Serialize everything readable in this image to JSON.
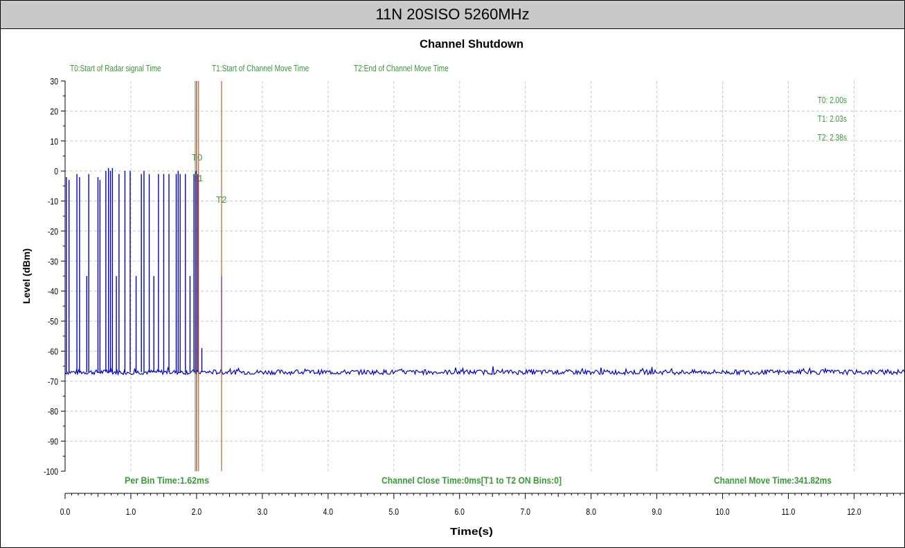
{
  "banner": "11N 20SISO 5260MHz",
  "colors": {
    "trace": "#0000cc",
    "marker_text": "#3a9a3a",
    "marker_line_red": "#cc2222",
    "marker_line_brown": "#b8602c",
    "grid": "#c8c8c8"
  },
  "chart_data": {
    "type": "line",
    "title": "Channel Shutdown",
    "xlabel": "Time(s)",
    "ylabel": "Level (dBm)",
    "xlim": [
      0,
      12.8
    ],
    "ylim": [
      -100,
      30
    ],
    "xticks": [
      "0.0",
      "1.0",
      "2.0",
      "3.0",
      "4.0",
      "5.0",
      "6.0",
      "7.0",
      "8.0",
      "9.0",
      "10.0",
      "11.0",
      "12.0"
    ],
    "yticks": [
      "30",
      "20",
      "10",
      "0",
      "-10",
      "-20",
      "-30",
      "-40",
      "-50",
      "-60",
      "-70",
      "-80",
      "-90",
      "-100"
    ],
    "grid": true,
    "noise_floor": -67,
    "pulses": [
      {
        "x": 0.02,
        "y": -2
      },
      {
        "x": 0.06,
        "y": -3
      },
      {
        "x": 0.18,
        "y": -1
      },
      {
        "x": 0.22,
        "y": -2
      },
      {
        "x": 0.33,
        "y": -35
      },
      {
        "x": 0.36,
        "y": -1
      },
      {
        "x": 0.5,
        "y": -2
      },
      {
        "x": 0.53,
        "y": -3
      },
      {
        "x": 0.62,
        "y": 0
      },
      {
        "x": 0.66,
        "y": 1
      },
      {
        "x": 0.69,
        "y": 0
      },
      {
        "x": 0.72,
        "y": 1
      },
      {
        "x": 0.78,
        "y": -35
      },
      {
        "x": 0.82,
        "y": -1
      },
      {
        "x": 0.91,
        "y": 0
      },
      {
        "x": 0.99,
        "y": 0
      },
      {
        "x": 1.08,
        "y": -35
      },
      {
        "x": 1.16,
        "y": -1
      },
      {
        "x": 1.2,
        "y": 0
      },
      {
        "x": 1.28,
        "y": -1
      },
      {
        "x": 1.35,
        "y": -35
      },
      {
        "x": 1.42,
        "y": -1
      },
      {
        "x": 1.5,
        "y": -1
      },
      {
        "x": 1.58,
        "y": -1
      },
      {
        "x": 1.69,
        "y": -1
      },
      {
        "x": 1.72,
        "y": 0
      },
      {
        "x": 1.75,
        "y": -1
      },
      {
        "x": 1.83,
        "y": -1
      },
      {
        "x": 1.9,
        "y": -35
      },
      {
        "x": 1.96,
        "y": -1
      },
      {
        "x": 1.99,
        "y": 0
      },
      {
        "x": 2.02,
        "y": -1
      },
      {
        "x": 2.08,
        "y": -59
      },
      {
        "x": 2.38,
        "y": -35
      }
    ],
    "markers": [
      {
        "label": "T0",
        "x": 2.0,
        "legend": "T0:Start of Radar signal Time",
        "readout": "T0: 2.00s"
      },
      {
        "label": "T1",
        "x": 2.03,
        "legend": "T1:Start of Channel Move Time",
        "readout": "T1: 2.03s"
      },
      {
        "label": "T2",
        "x": 2.38,
        "legend": "T2:End of Channel Move Time",
        "readout": "T2: 2.38s"
      }
    ],
    "annotations": {
      "per_bin": "Per Bin Time:1.62ms",
      "close_time": "Channel Close Time:0ms[T1 to T2 ON Bins:0]",
      "move_time": "Channel Move Time:341.82ms"
    }
  }
}
